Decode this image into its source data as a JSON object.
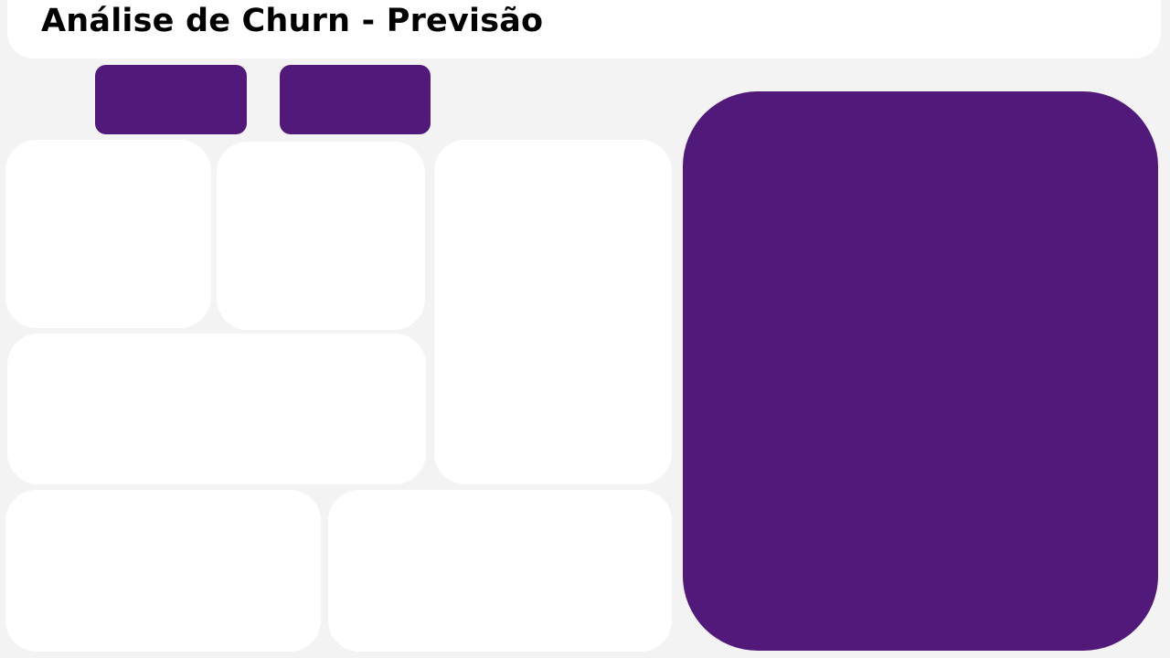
{
  "header": {
    "title": "Análise de Churn - Previsão"
  },
  "toolbar": {
    "buttons": [
      {
        "label": ""
      },
      {
        "label": ""
      }
    ]
  },
  "colors": {
    "accent": "#51197a",
    "background": "#f3f3f3",
    "card": "#ffffff"
  }
}
